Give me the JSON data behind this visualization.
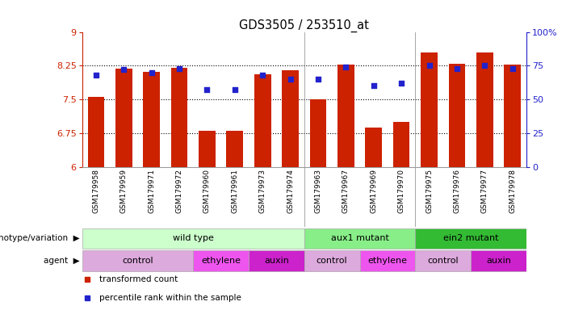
{
  "title": "GDS3505 / 253510_at",
  "samples": [
    "GSM179958",
    "GSM179959",
    "GSM179971",
    "GSM179972",
    "GSM179960",
    "GSM179961",
    "GSM179973",
    "GSM179974",
    "GSM179963",
    "GSM179967",
    "GSM179969",
    "GSM179970",
    "GSM179975",
    "GSM179976",
    "GSM179977",
    "GSM179978"
  ],
  "bar_values": [
    7.55,
    8.18,
    8.12,
    8.2,
    6.8,
    6.8,
    8.05,
    8.15,
    7.5,
    8.28,
    6.87,
    7.0,
    8.55,
    8.3,
    8.55,
    8.28
  ],
  "percentile_values": [
    68,
    72,
    70,
    73,
    57,
    57,
    68,
    65,
    65,
    74,
    60,
    62,
    75,
    73,
    75,
    73
  ],
  "ylim_left": [
    6.0,
    9.0
  ],
  "ylim_right": [
    0,
    100
  ],
  "yticks_left": [
    6.0,
    6.75,
    7.5,
    8.25,
    9.0
  ],
  "yticks_right": [
    0,
    25,
    50,
    75,
    100
  ],
  "hlines": [
    6.75,
    7.5,
    8.25
  ],
  "bar_color": "#cc2200",
  "dot_color": "#2222cc",
  "group_dividers": [
    8,
    12
  ],
  "genotype_groups": [
    {
      "label": "wild type",
      "start": 0,
      "end": 8,
      "color": "#ccffcc"
    },
    {
      "label": "aux1 mutant",
      "start": 8,
      "end": 12,
      "color": "#88ee88"
    },
    {
      "label": "ein2 mutant",
      "start": 12,
      "end": 16,
      "color": "#33bb33"
    }
  ],
  "agent_groups": [
    {
      "label": "control",
      "start": 0,
      "end": 4,
      "color": "#ddaadd"
    },
    {
      "label": "ethylene",
      "start": 4,
      "end": 6,
      "color": "#ee55ee"
    },
    {
      "label": "auxin",
      "start": 6,
      "end": 8,
      "color": "#cc22cc"
    },
    {
      "label": "control",
      "start": 8,
      "end": 10,
      "color": "#ddaadd"
    },
    {
      "label": "ethylene",
      "start": 10,
      "end": 12,
      "color": "#ee55ee"
    },
    {
      "label": "control",
      "start": 12,
      "end": 14,
      "color": "#ddaadd"
    },
    {
      "label": "auxin",
      "start": 14,
      "end": 16,
      "color": "#cc22cc"
    }
  ],
  "legend_items": [
    {
      "label": "transformed count",
      "color": "#cc2200",
      "marker": "s"
    },
    {
      "label": "percentile rank within the sample",
      "color": "#2222cc",
      "marker": "s"
    }
  ],
  "left_labels": [
    "genotype/variation",
    "agent"
  ],
  "xtick_bg": "#d8d8d8"
}
